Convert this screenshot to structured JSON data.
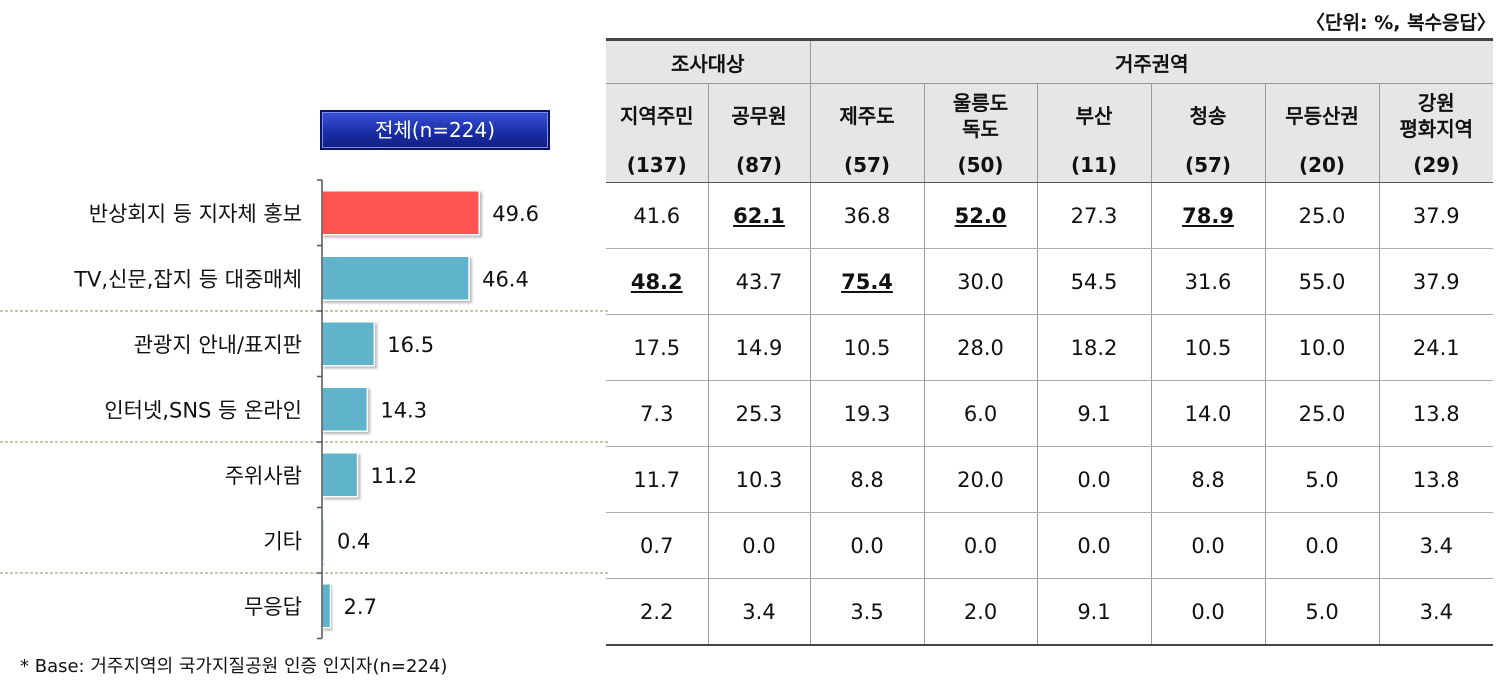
{
  "unit_note": "〈단위: %, 복수응답〉",
  "total_label": "전체(n=224)",
  "footnote": "* Base: 거주지역의 국가지질공원 인증 인지자(n=224)",
  "colors": {
    "highlight_bar": "#fe5252",
    "bar": "#5fb4cc",
    "totalbox": "#1f33b8"
  },
  "table": {
    "group_headers": [
      {
        "label": "조사대상",
        "span": 2
      },
      {
        "label": "거주권역",
        "span": 6
      }
    ],
    "column_headers": [
      "지역주민",
      "공무원",
      "제주도",
      "울릉도\n독도",
      "부산",
      "청송",
      "무등산권",
      "강원\n평화지역"
    ],
    "sample_sizes": [
      "(137)",
      "(87)",
      "(57)",
      "(50)",
      "(11)",
      "(57)",
      "(20)",
      "(29)"
    ],
    "rows": [
      [
        {
          "v": "41.6"
        },
        {
          "v": "62.1",
          "hl": true
        },
        {
          "v": "36.8"
        },
        {
          "v": "52.0",
          "hl": true
        },
        {
          "v": "27.3"
        },
        {
          "v": "78.9",
          "hl": true
        },
        {
          "v": "25.0"
        },
        {
          "v": "37.9"
        }
      ],
      [
        {
          "v": "48.2",
          "hl": true
        },
        {
          "v": "43.7"
        },
        {
          "v": "75.4",
          "hl": true
        },
        {
          "v": "30.0"
        },
        {
          "v": "54.5"
        },
        {
          "v": "31.6"
        },
        {
          "v": "55.0"
        },
        {
          "v": "37.9"
        }
      ],
      [
        {
          "v": "17.5"
        },
        {
          "v": "14.9"
        },
        {
          "v": "10.5"
        },
        {
          "v": "28.0"
        },
        {
          "v": "18.2"
        },
        {
          "v": "10.5"
        },
        {
          "v": "10.0"
        },
        {
          "v": "24.1"
        }
      ],
      [
        {
          "v": "7.3"
        },
        {
          "v": "25.3"
        },
        {
          "v": "19.3"
        },
        {
          "v": "6.0"
        },
        {
          "v": "9.1"
        },
        {
          "v": "14.0"
        },
        {
          "v": "25.0"
        },
        {
          "v": "13.8"
        }
      ],
      [
        {
          "v": "11.7"
        },
        {
          "v": "10.3"
        },
        {
          "v": "8.8"
        },
        {
          "v": "20.0"
        },
        {
          "v": "0.0"
        },
        {
          "v": "8.8"
        },
        {
          "v": "5.0"
        },
        {
          "v": "13.8"
        }
      ],
      [
        {
          "v": "0.7"
        },
        {
          "v": "0.0"
        },
        {
          "v": "0.0"
        },
        {
          "v": "0.0"
        },
        {
          "v": "0.0"
        },
        {
          "v": "0.0"
        },
        {
          "v": "0.0"
        },
        {
          "v": "3.4"
        }
      ],
      [
        {
          "v": "2.2"
        },
        {
          "v": "3.4"
        },
        {
          "v": "3.5"
        },
        {
          "v": "2.0"
        },
        {
          "v": "9.1"
        },
        {
          "v": "0.0"
        },
        {
          "v": "5.0"
        },
        {
          "v": "3.4"
        }
      ]
    ]
  },
  "chart_data": {
    "type": "bar",
    "orientation": "horizontal",
    "categories": [
      "반상회지 등 지자체 홍보",
      "TV,신문,잡지 등 대중매체",
      "관광지 안내/표지판",
      "인터넷,SNS 등 온라인",
      "주위사람",
      "기타",
      "무응답"
    ],
    "values": [
      49.6,
      46.4,
      16.5,
      14.3,
      11.2,
      0.4,
      2.7
    ],
    "value_labels": [
      "49.6",
      "46.4",
      "16.5",
      "14.3",
      "11.2",
      "0.4",
      "2.7"
    ],
    "highlight_index": 0,
    "xlim": [
      0,
      60
    ],
    "group_separators_after": [
      1,
      3,
      5
    ]
  }
}
